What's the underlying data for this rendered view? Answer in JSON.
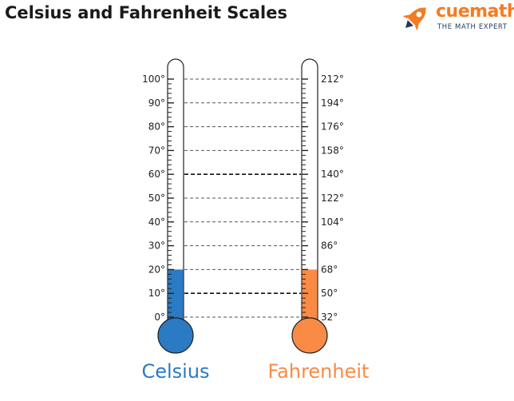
{
  "title": "Celsius and Fahrenheit Scales",
  "logo": {
    "name": "cuemath",
    "tagline": "THE MATH EXPERT",
    "icon": "rocket-icon",
    "color": "#f57c20"
  },
  "thermometers": {
    "celsius": {
      "name": "Celsius",
      "color": "#2a7ac4",
      "fill_level_degrees": 20,
      "labels": [
        "100°",
        "90°",
        "80°",
        "70°",
        "60°",
        "50°",
        "40°",
        "30°",
        "20°",
        "10°",
        "0°"
      ]
    },
    "fahrenheit": {
      "name": "Fahrenheit",
      "color": "#f98b45",
      "fill_level_degrees": 68,
      "labels": [
        "212°",
        "194°",
        "176°",
        "158°",
        "140°",
        "122°",
        "104°",
        "86°",
        "68°",
        "50°",
        "32°"
      ]
    }
  },
  "scale_pairs": [
    {
      "celsius": 100,
      "fahrenheit": 212
    },
    {
      "celsius": 90,
      "fahrenheit": 194
    },
    {
      "celsius": 80,
      "fahrenheit": 176
    },
    {
      "celsius": 70,
      "fahrenheit": 158
    },
    {
      "celsius": 60,
      "fahrenheit": 140
    },
    {
      "celsius": 50,
      "fahrenheit": 122
    },
    {
      "celsius": 40,
      "fahrenheit": 104
    },
    {
      "celsius": 30,
      "fahrenheit": 86
    },
    {
      "celsius": 20,
      "fahrenheit": 68
    },
    {
      "celsius": 10,
      "fahrenheit": 50
    },
    {
      "celsius": 0,
      "fahrenheit": 32
    }
  ],
  "highlighted_pairs": [
    60,
    10
  ]
}
